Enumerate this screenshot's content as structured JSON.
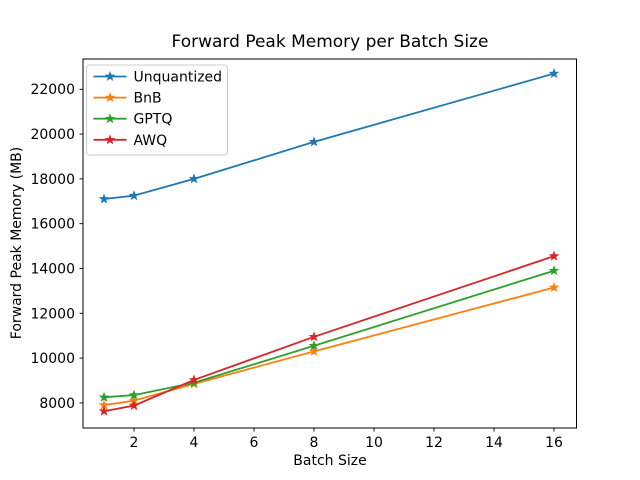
{
  "chart_data": {
    "type": "line",
    "title": "Forward Peak Memory per Batch Size",
    "xlabel": "Batch Size",
    "ylabel": "Forward Peak Memory (MB)",
    "x": [
      1,
      2,
      4,
      8,
      16
    ],
    "series": [
      {
        "name": "Unquantized",
        "color": "#1f77b4",
        "values": [
          17100,
          17250,
          18000,
          19650,
          22700
        ]
      },
      {
        "name": "BnB",
        "color": "#ff7f0e",
        "values": [
          7900,
          8100,
          8850,
          10300,
          13150
        ]
      },
      {
        "name": "GPTQ",
        "color": "#2ca02c",
        "values": [
          8250,
          8350,
          8900,
          10550,
          13900
        ]
      },
      {
        "name": "AWQ",
        "color": "#d62728",
        "values": [
          7630,
          7880,
          9025,
          10950,
          14550
        ]
      }
    ],
    "marker": "star",
    "xticks": [
      2,
      4,
      6,
      8,
      10,
      12,
      14,
      16
    ],
    "yticks": [
      8000,
      10000,
      12000,
      14000,
      16000,
      18000,
      20000,
      22000
    ],
    "xlim": [
      0.3,
      16.75
    ],
    "ylim": [
      6880,
      23350
    ],
    "grid": false,
    "legend": {
      "position": "upper left",
      "entries": [
        "Unquantized",
        "BnB",
        "GPTQ",
        "AWQ"
      ]
    }
  }
}
